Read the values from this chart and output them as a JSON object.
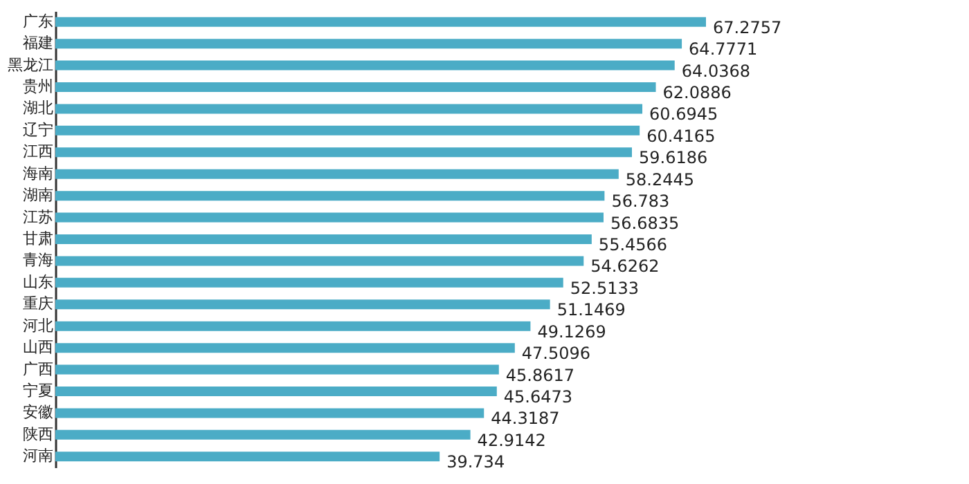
{
  "chart_data": {
    "type": "bar",
    "orientation": "horizontal",
    "data_labels": true,
    "tick_labels": "y",
    "categories": [
      "广东",
      "福建",
      "黑龙江",
      "贵州",
      "湖北",
      "辽宁",
      "江西",
      "海南",
      "湖南",
      "江苏",
      "甘肃",
      "青海",
      "山东",
      "重庆",
      "河北",
      "山西",
      "广西",
      "宁夏",
      "安徽",
      "陕西",
      "河南"
    ],
    "values": [
      67.2757,
      64.7771,
      64.0368,
      62.0886,
      60.6945,
      60.4165,
      59.6186,
      58.2445,
      56.783,
      56.6835,
      55.4566,
      54.6262,
      52.5133,
      51.1469,
      49.1269,
      47.5096,
      45.8617,
      45.6473,
      44.3187,
      42.9142,
      39.734
    ],
    "color": "#4bacc6"
  }
}
